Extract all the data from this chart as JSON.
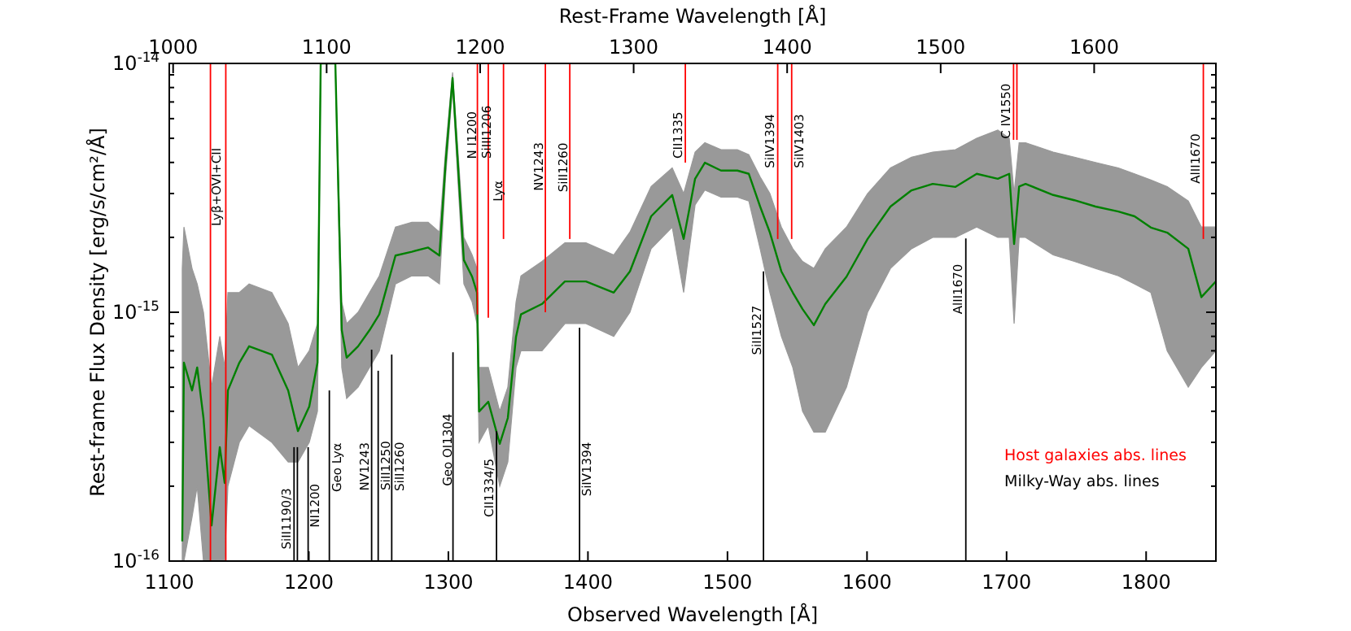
{
  "chart_data": {
    "type": "line",
    "xlabel": "Observed Wavelength [Å]",
    "ylabel": "Rest-frame Flux Density [erg/s/cm²/Å]",
    "x2label": "Rest-Frame Wavelength [Å]",
    "xlim": [
      1100,
      1850
    ],
    "xticks": [
      1100,
      1200,
      1300,
      1400,
      1500,
      1600,
      1700,
      1800
    ],
    "x2lim": [
      997.5,
      1679.3
    ],
    "x2ticks": [
      1000,
      1100,
      1200,
      1300,
      1400,
      1500,
      1600
    ],
    "ylim": [
      1e-16,
      1e-14
    ],
    "log": true,
    "yticks": [
      {
        "value": 1e-16,
        "label": "10$^{-16}$"
      },
      {
        "value": 2e-16,
        "label": null
      },
      {
        "value": 3e-16,
        "label": null
      },
      {
        "value": 4e-16,
        "label": null
      },
      {
        "value": 5e-16,
        "label": null
      },
      {
        "value": 6e-16,
        "label": null
      },
      {
        "value": 7e-16,
        "label": null
      },
      {
        "value": 8e-16,
        "label": null
      },
      {
        "value": 9e-16,
        "label": null
      },
      {
        "value": 1e-15,
        "label": "10$^{-15}$"
      },
      {
        "value": 2e-15,
        "label": null
      },
      {
        "value": 3e-15,
        "label": null
      },
      {
        "value": 4e-15,
        "label": null
      },
      {
        "value": 5e-15,
        "label": null
      },
      {
        "value": 6e-15,
        "label": null
      },
      {
        "value": 7e-15,
        "label": null
      },
      {
        "value": 8e-15,
        "label": null
      },
      {
        "value": 9e-15,
        "label": null
      },
      {
        "value": 1e-14,
        "label": "10$^{-14}$"
      }
    ],
    "legend": "bottom right",
    "series": [
      {
        "color": "#008000",
        "x": [
          1109.3,
          1110.5,
          1116.3,
          1120,
          1124.5,
          1130.3,
          1136.2,
          1139.7,
          1142,
          1150.2,
          1157.2,
          1173.5,
          1185.2,
          1192.2,
          1200.3,
          1206.2,
          1208.5,
          1219,
          1223.6,
          1227.1,
          1235.3,
          1243.5,
          1250.5,
          1262.1,
          1273.8,
          1285.5,
          1293.6,
          1298,
          1303,
          1311.1,
          1317,
          1320.5,
          1322,
          1328.6,
          1336.8,
          1342.6,
          1348.5,
          1352,
          1367.1,
          1383.5,
          1398.6,
          1418.5,
          1430.1,
          1445.3,
          1460.4,
          1468.6,
          1476.8,
          1483.8,
          1495.4,
          1507.1,
          1515.3,
          1523.4,
          1530.4,
          1538.6,
          1546.8,
          1553.8,
          1561.9,
          1570.1,
          1585.3,
          1600.4,
          1616.8,
          1631.9,
          1647.1,
          1663.4,
          1678.6,
          1693.7,
          1701.9,
          1705.4,
          1709,
          1713.6,
          1733.4,
          1748.6,
          1763.7,
          1780.1,
          1791.7,
          1803.4,
          1815.1,
          1830.2,
          1839.6,
          1850
        ],
        "values": [
          1.2e-16,
          6.27e-16,
          4.85e-16,
          6e-16,
          3.76e-16,
          1.39e-16,
          2.87e-16,
          2.06e-16,
          4.85e-16,
          6.27e-16,
          7.3e-16,
          6.76e-16,
          4.85e-16,
          3.33e-16,
          4.18e-16,
          6.27e-16,
          1e-14,
          1e-14,
          8.47e-16,
          6.57e-16,
          7.3e-16,
          8.47e-16,
          9.8e-16,
          1.69e-15,
          1.75e-15,
          1.82e-15,
          1.69e-15,
          3.99e-15,
          8.73e-15,
          1.62e-15,
          1.39e-15,
          1.2e-15,
          3.99e-16,
          4.37e-16,
          2.96e-16,
          3.76e-16,
          7.98e-16,
          9.8e-16,
          1.08e-15,
          1.33e-15,
          1.33e-15,
          1.2e-15,
          1.46e-15,
          2.43e-15,
          2.96e-15,
          1.97e-15,
          3.44e-15,
          3.99e-15,
          3.71e-15,
          3.71e-15,
          3.6e-15,
          2.66e-15,
          2.09e-15,
          1.46e-15,
          1.2e-15,
          1.03e-15,
          8.87e-16,
          1.08e-15,
          1.39e-15,
          1.97e-15,
          2.66e-15,
          3.09e-15,
          3.28e-15,
          3.19e-15,
          3.6e-15,
          3.44e-15,
          3.6e-15,
          1.88e-15,
          3.2e-15,
          3.28e-15,
          2.96e-15,
          2.82e-15,
          2.66e-15,
          2.54e-15,
          2.43e-15,
          2.19e-15,
          2.09e-15,
          1.8e-15,
          1.15e-15,
          1.33e-15
        ],
        "lower": [
          1e-16,
          1e-16,
          1.5e-16,
          2e-16,
          1e-16,
          1e-16,
          1e-16,
          1e-16,
          2e-16,
          3e-16,
          3.5e-16,
          3e-16,
          2.5e-16,
          2.5e-16,
          3e-16,
          4e-16,
          1e-14,
          1e-14,
          6e-16,
          4.5e-16,
          5e-16,
          6e-16,
          7e-16,
          1.3e-15,
          1.4e-15,
          1.4e-15,
          1.3e-15,
          3.5e-15,
          8e-15,
          1.3e-15,
          1.1e-15,
          9e-16,
          3e-16,
          3.5e-16,
          2e-16,
          2.5e-16,
          6e-16,
          7e-16,
          7e-16,
          9e-16,
          9e-16,
          8e-16,
          1e-15,
          1.8e-15,
          2.2e-15,
          1.2e-15,
          2.7e-15,
          3.1e-15,
          2.9e-15,
          2.9e-15,
          2.8e-15,
          1.8e-15,
          1.2e-15,
          8e-16,
          6e-16,
          4e-16,
          3.3e-16,
          3.3e-16,
          5e-16,
          1e-15,
          1.5e-15,
          1.8e-15,
          2e-15,
          2e-15,
          2.2e-15,
          2e-15,
          2e-15,
          9e-16,
          2e-15,
          2e-15,
          1.7e-15,
          1.6e-15,
          1.5e-15,
          1.4e-15,
          1.3e-15,
          1.2e-15,
          7e-16,
          5e-16,
          6e-16,
          7e-16
        ],
        "upper": [
          1.5e-15,
          2.2e-15,
          1.5e-15,
          1.3e-15,
          1e-15,
          5e-16,
          8e-16,
          6e-16,
          1.2e-15,
          1.2e-15,
          1.3e-15,
          1.2e-15,
          9e-16,
          6e-16,
          7e-16,
          9e-16,
          1e-14,
          1e-14,
          1.1e-15,
          9e-16,
          1e-15,
          1.2e-15,
          1.4e-15,
          2.2e-15,
          2.3e-15,
          2.3e-15,
          2.1e-15,
          4.5e-15,
          9.2e-15,
          2e-15,
          1.7e-15,
          1.5e-15,
          6e-16,
          6e-16,
          4e-16,
          5e-16,
          1.1e-15,
          1.4e-15,
          1.6e-15,
          1.9e-15,
          1.9e-15,
          1.7e-15,
          2.1e-15,
          3.2e-15,
          3.8e-15,
          3e-15,
          4.4e-15,
          4.8e-15,
          4.5e-15,
          4.5e-15,
          4.3e-15,
          3.5e-15,
          3e-15,
          2.2e-15,
          1.8e-15,
          1.6e-15,
          1.5e-15,
          1.8e-15,
          2.2e-15,
          3e-15,
          3.8e-15,
          4.2e-15,
          4.4e-15,
          4.5e-15,
          5e-15,
          5.4e-15,
          5e-15,
          3e-15,
          4.8e-15,
          4.8e-15,
          4.4e-15,
          4.2e-15,
          4e-15,
          3.8e-15,
          3.6e-15,
          3.4e-15,
          3.2e-15,
          2.8e-15,
          2.2e-15,
          2.2e-15
        ]
      },
      {
        "name": "Host galaxies abs. lines",
        "color": "#ff0000",
        "x": [
          1129.5,
          1129.5
        ],
        "values": [
          1e-14,
          1e-16
        ]
      },
      {
        "color": "#ff0000",
        "x": [
          1140.5,
          1140.5
        ],
        "values": [
          1e-14,
          1e-16
        ]
      },
      {
        "color": "#ff0000",
        "x": [
          1320.8,
          1320.8
        ],
        "values": [
          1e-14,
          9.8e-16
        ]
      },
      {
        "color": "#ff0000",
        "x": [
          1328.6,
          1328.6
        ],
        "values": [
          1e-14,
          9.5e-16
        ]
      },
      {
        "color": "#ff0000",
        "x": [
          1339.5,
          1339.5
        ],
        "values": [
          1e-14,
          1.97e-15
        ]
      },
      {
        "color": "#ff0000",
        "x": [
          1369.5,
          1369.5
        ],
        "values": [
          1e-14,
          1e-15
        ]
      },
      {
        "color": "#ff0000",
        "x": [
          1387,
          1387
        ],
        "values": [
          1e-14,
          1.97e-15
        ]
      },
      {
        "color": "#ff0000",
        "x": [
          1469.8,
          1469.8
        ],
        "values": [
          1e-14,
          3.99e-15
        ]
      },
      {
        "color": "#ff0000",
        "x": [
          1536,
          1536
        ],
        "values": [
          1e-14,
          1.97e-15
        ]
      },
      {
        "color": "#ff0000",
        "x": [
          1546,
          1546
        ],
        "values": [
          1e-14,
          1.97e-15
        ]
      },
      {
        "color": "#ff0000",
        "x": [
          1705,
          1705
        ],
        "values": [
          1e-14,
          4.93e-15
        ]
      },
      {
        "color": "#ff0000",
        "x": [
          1707.4,
          1707.4
        ],
        "values": [
          1e-14,
          4.93e-15
        ]
      },
      {
        "color": "#ff0000",
        "x": [
          1841,
          1841
        ],
        "values": [
          1e-14,
          1.97e-15
        ]
      },
      {
        "name": "Milky-Way abs. lines",
        "color": "#000000",
        "x": [
          1189.4,
          1189.4
        ],
        "values": [
          1e-16,
          2.87e-16
        ]
      },
      {
        "color": "#000000",
        "x": [
          1191.8,
          1191.8
        ],
        "values": [
          1e-16,
          2.87e-16
        ]
      },
      {
        "color": "#000000",
        "x": [
          1199.5,
          1199.5
        ],
        "values": [
          1e-16,
          2.87e-16
        ]
      },
      {
        "color": "#000000",
        "x": [
          1214.7,
          1214.7
        ],
        "values": [
          1e-16,
          4.85e-16
        ]
      },
      {
        "color": "#000000",
        "x": [
          1245,
          1245
        ],
        "values": [
          1e-16,
          7.08e-16
        ]
      },
      {
        "color": "#000000",
        "x": [
          1249.7,
          1249.7
        ],
        "values": [
          1e-16,
          5.82e-16
        ]
      },
      {
        "color": "#000000",
        "x": [
          1259.4,
          1259.4
        ],
        "values": [
          1e-16,
          6.76e-16
        ]
      },
      {
        "color": "#000000",
        "x": [
          1303.3,
          1303.3
        ],
        "values": [
          1e-16,
          6.9e-16
        ]
      },
      {
        "color": "#000000",
        "x": [
          1334.5,
          1334.5
        ],
        "values": [
          1e-16,
          3.33e-16
        ]
      },
      {
        "color": "#000000",
        "x": [
          1394,
          1394
        ],
        "values": [
          1e-16,
          8.67e-16
        ]
      },
      {
        "color": "#000000",
        "x": [
          1525.8,
          1525.8
        ],
        "values": [
          1e-16,
          1.46e-15
        ]
      },
      {
        "color": "#000000",
        "x": [
          1670.8,
          1670.8
        ],
        "values": [
          1e-16,
          1.98e-15
        ]
      }
    ],
    "annotations": [
      {
        "text": "Lyβ+OVI+CII",
        "x": 1133.8,
        "y": 3.19e-15
      },
      {
        "text": "N I1200",
        "x": 1317,
        "y": 5.15e-15
      },
      {
        "text": "SiIII1206",
        "x": 1327.5,
        "y": 5.3e-15
      },
      {
        "text": "Lyα",
        "x": 1335.6,
        "y": 3.07e-15
      },
      {
        "text": "NV1243",
        "x": 1364.8,
        "y": 3.85e-15
      },
      {
        "text": "SiII1260",
        "x": 1382.3,
        "y": 3.82e-15
      },
      {
        "text": "CII1335",
        "x": 1464.8,
        "y": 5.15e-15
      },
      {
        "text": "SiIV1394",
        "x": 1530.6,
        "y": 4.88e-15
      },
      {
        "text": "SiIV1403",
        "x": 1551.3,
        "y": 4.88e-15
      },
      {
        "text": "C IV1550",
        "x": 1699.7,
        "y": 6.43e-15
      },
      {
        "text": "AlII1670",
        "x": 1835.3,
        "y": 4.15e-15
      },
      {
        "text": "SiII1190/3",
        "x": 1184,
        "y": 1.48e-16
      },
      {
        "text": "NI1200",
        "x": 1204.6,
        "y": 1.67e-16
      },
      {
        "text": "Geo Lyα",
        "x": 1219.9,
        "y": 2.38e-16
      },
      {
        "text": "NV1243",
        "x": 1240,
        "y": 2.4e-16
      },
      {
        "text": "SiII1250",
        "x": 1254.9,
        "y": 2.42e-16
      },
      {
        "text": "SiII1260",
        "x": 1264.8,
        "y": 2.4e-16
      },
      {
        "text": "Geo OI1304",
        "x": 1299.5,
        "y": 2.8e-16
      },
      {
        "text": "CII1334/5",
        "x": 1329.4,
        "y": 1.97e-16
      },
      {
        "text": "SiIV1394",
        "x": 1399.4,
        "y": 2.34e-16
      },
      {
        "text": "SiII1527",
        "x": 1521.1,
        "y": 8.47e-16
      },
      {
        "text": "AlII1670",
        "x": 1665.4,
        "y": 1.24e-15
      }
    ]
  }
}
